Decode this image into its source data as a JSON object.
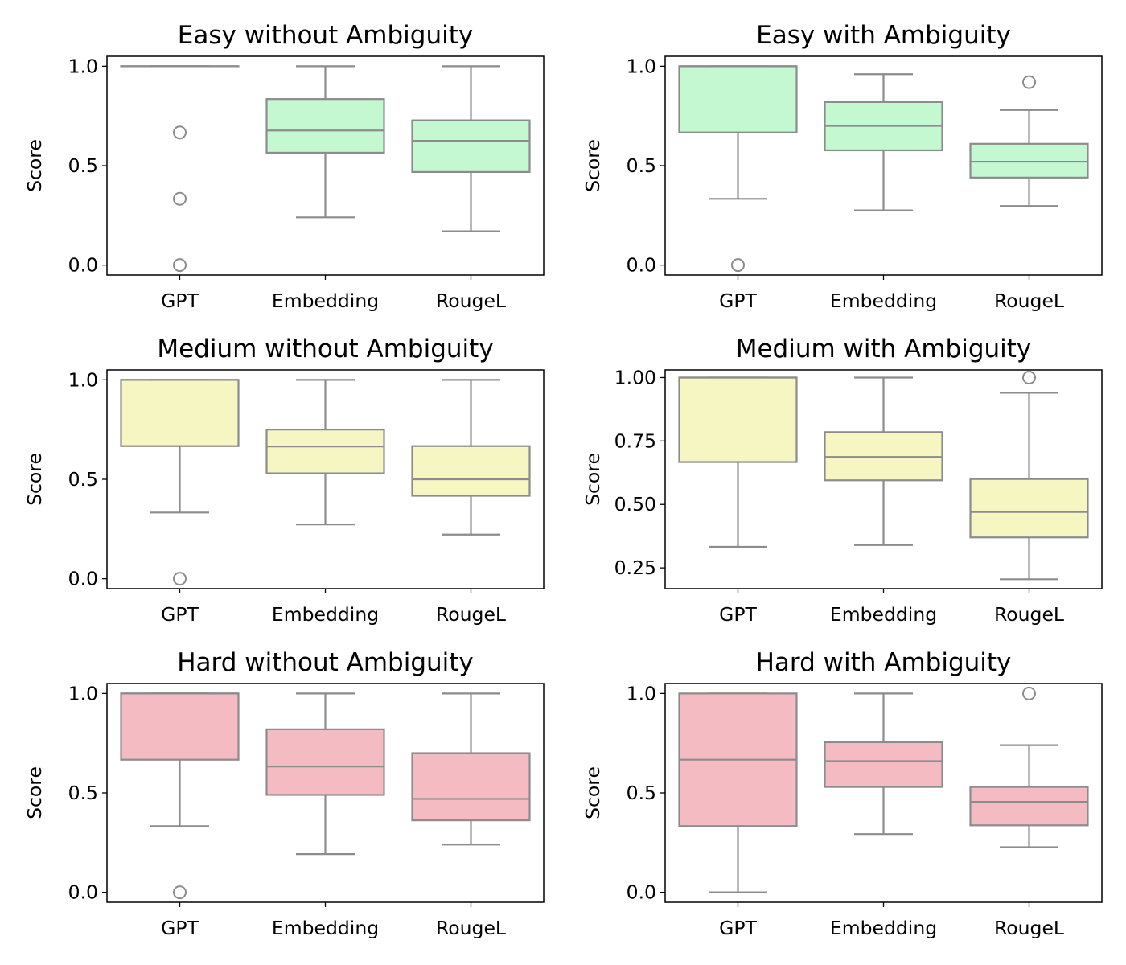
{
  "chart_data": [
    {
      "type": "box",
      "title": "Easy without Ambiguity",
      "ylabel": "Score",
      "ylim": [
        -0.05,
        1.05
      ],
      "yticks": [
        0.0,
        0.5,
        1.0
      ],
      "ytick_labels": [
        "0.0",
        "0.5",
        "1.0"
      ],
      "fill": "#c3f8d0",
      "categories": [
        "GPT",
        "Embedding",
        "RougeL"
      ],
      "boxes": [
        {
          "q1": 1.0,
          "median": 1.0,
          "q3": 1.0,
          "whisker_low": 1.0,
          "whisker_high": 1.0,
          "outliers": [
            0.667,
            0.333,
            0.0
          ]
        },
        {
          "q1": 0.565,
          "median": 0.677,
          "q3": 0.835,
          "whisker_low": 0.24,
          "whisker_high": 1.0,
          "outliers": []
        },
        {
          "q1": 0.468,
          "median": 0.625,
          "q3": 0.728,
          "whisker_low": 0.17,
          "whisker_high": 1.0,
          "outliers": []
        }
      ]
    },
    {
      "type": "box",
      "title": "Easy with Ambiguity",
      "ylabel": "Score",
      "ylim": [
        -0.05,
        1.05
      ],
      "yticks": [
        0.0,
        0.5,
        1.0
      ],
      "ytick_labels": [
        "0.0",
        "0.5",
        "1.0"
      ],
      "fill": "#c3f8d0",
      "categories": [
        "GPT",
        "Embedding",
        "RougeL"
      ],
      "boxes": [
        {
          "q1": 0.667,
          "median": 1.0,
          "q3": 1.0,
          "whisker_low": 0.333,
          "whisker_high": 1.0,
          "outliers": [
            0.0
          ]
        },
        {
          "q1": 0.577,
          "median": 0.7,
          "q3": 0.82,
          "whisker_low": 0.275,
          "whisker_high": 0.96,
          "outliers": []
        },
        {
          "q1": 0.44,
          "median": 0.52,
          "q3": 0.61,
          "whisker_low": 0.297,
          "whisker_high": 0.78,
          "outliers": [
            0.92
          ]
        }
      ]
    },
    {
      "type": "box",
      "title": "Medium without Ambiguity",
      "ylabel": "Score",
      "ylim": [
        -0.05,
        1.05
      ],
      "yticks": [
        0.0,
        0.5,
        1.0
      ],
      "ytick_labels": [
        "0.0",
        "0.5",
        "1.0"
      ],
      "fill": "#f5f6c2",
      "categories": [
        "GPT",
        "Embedding",
        "RougeL"
      ],
      "boxes": [
        {
          "q1": 0.667,
          "median": 1.0,
          "q3": 1.0,
          "whisker_low": 0.333,
          "whisker_high": 1.0,
          "outliers": [
            0.0
          ]
        },
        {
          "q1": 0.53,
          "median": 0.665,
          "q3": 0.75,
          "whisker_low": 0.273,
          "whisker_high": 1.0,
          "outliers": []
        },
        {
          "q1": 0.417,
          "median": 0.5,
          "q3": 0.667,
          "whisker_low": 0.222,
          "whisker_high": 1.0,
          "outliers": []
        }
      ]
    },
    {
      "type": "box",
      "title": "Medium with Ambiguity",
      "ylabel": "Score",
      "ylim": [
        0.168,
        1.03
      ],
      "yticks": [
        0.25,
        0.5,
        0.75,
        1.0
      ],
      "ytick_labels": [
        "0.25",
        "0.50",
        "0.75",
        "1.00"
      ],
      "fill": "#f5f6c2",
      "categories": [
        "GPT",
        "Embedding",
        "RougeL"
      ],
      "boxes": [
        {
          "q1": 0.667,
          "median": 1.0,
          "q3": 1.0,
          "whisker_low": 0.333,
          "whisker_high": 1.0,
          "outliers": []
        },
        {
          "q1": 0.595,
          "median": 0.687,
          "q3": 0.785,
          "whisker_low": 0.34,
          "whisker_high": 1.0,
          "outliers": []
        },
        {
          "q1": 0.37,
          "median": 0.47,
          "q3": 0.6,
          "whisker_low": 0.205,
          "whisker_high": 0.94,
          "outliers": [
            1.0
          ]
        }
      ]
    },
    {
      "type": "box",
      "title": "Hard without Ambiguity",
      "ylabel": "Score",
      "ylim": [
        -0.05,
        1.05
      ],
      "yticks": [
        0.0,
        0.5,
        1.0
      ],
      "ytick_labels": [
        "0.0",
        "0.5",
        "1.0"
      ],
      "fill": "#f5bbc3",
      "categories": [
        "GPT",
        "Embedding",
        "RougeL"
      ],
      "boxes": [
        {
          "q1": 0.667,
          "median": 1.0,
          "q3": 1.0,
          "whisker_low": 0.333,
          "whisker_high": 1.0,
          "outliers": [
            0.0
          ]
        },
        {
          "q1": 0.49,
          "median": 0.633,
          "q3": 0.82,
          "whisker_low": 0.192,
          "whisker_high": 1.0,
          "outliers": []
        },
        {
          "q1": 0.362,
          "median": 0.47,
          "q3": 0.7,
          "whisker_low": 0.24,
          "whisker_high": 1.0,
          "outliers": []
        }
      ]
    },
    {
      "type": "box",
      "title": "Hard with Ambiguity",
      "ylabel": "Score",
      "ylim": [
        -0.05,
        1.05
      ],
      "yticks": [
        0.0,
        0.5,
        1.0
      ],
      "ytick_labels": [
        "0.0",
        "0.5",
        "1.0"
      ],
      "fill": "#f5bbc3",
      "categories": [
        "GPT",
        "Embedding",
        "RougeL"
      ],
      "boxes": [
        {
          "q1": 0.333,
          "median": 0.667,
          "q3": 1.0,
          "whisker_low": 0.0,
          "whisker_high": 1.0,
          "outliers": []
        },
        {
          "q1": 0.53,
          "median": 0.66,
          "q3": 0.755,
          "whisker_low": 0.293,
          "whisker_high": 1.0,
          "outliers": []
        },
        {
          "q1": 0.337,
          "median": 0.455,
          "q3": 0.53,
          "whisker_low": 0.227,
          "whisker_high": 0.74,
          "outliers": [
            1.0
          ]
        }
      ]
    }
  ],
  "style": {
    "line_color": "#8c8c8c",
    "axis_color": "#000000"
  }
}
